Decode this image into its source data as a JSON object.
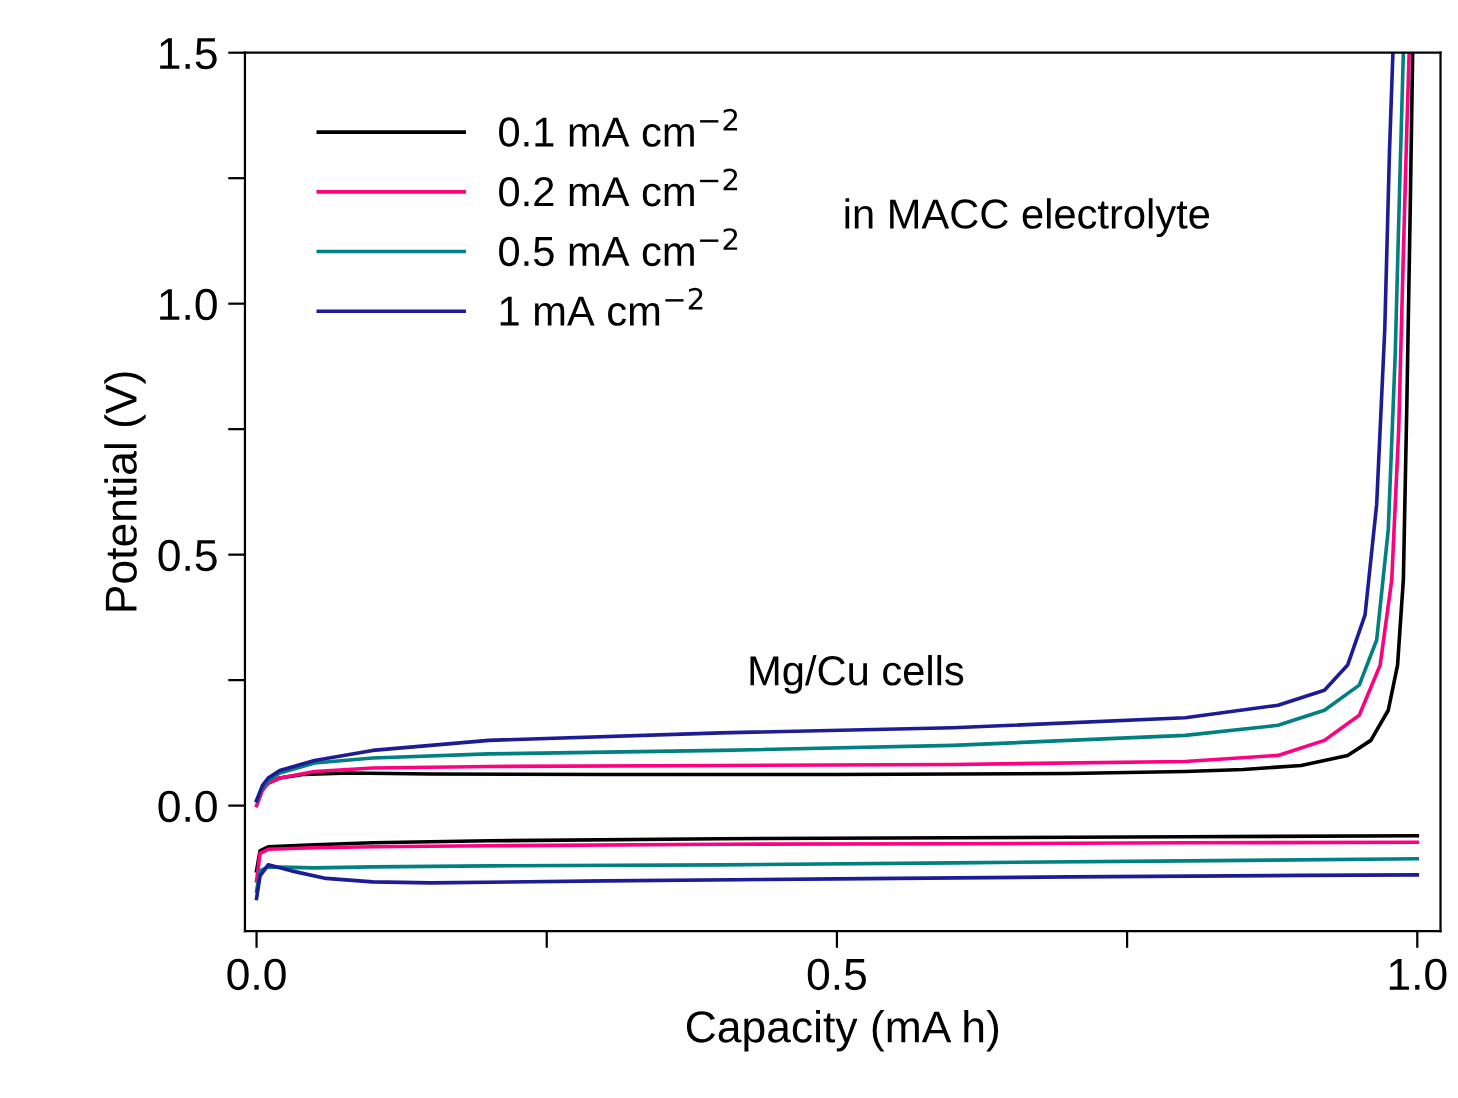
{
  "chart_data": {
    "type": "line",
    "xlabel": "Capacity (mA h)",
    "ylabel": "Potential (V)",
    "xlim": [
      -0.01,
      1.02
    ],
    "ylim": [
      -0.25,
      1.5
    ],
    "xticks": [
      {
        "value": 0,
        "label": "0.0"
      },
      {
        "value": 0.25,
        "label": null
      },
      0.5,
      {
        "value": 0.75,
        "label": null
      },
      {
        "value": 1,
        "label": "1.0"
      }
    ],
    "yticks": [
      {
        "value": 0,
        "label": "0.0"
      },
      {
        "value": 0.25,
        "label": null
      },
      0.5,
      {
        "value": 0.75,
        "label": null
      },
      {
        "value": 1,
        "label": "1.0"
      },
      {
        "value": 1.25,
        "label": null
      },
      1.5
    ],
    "grid": false,
    "legend": "top left",
    "line_style": "solid",
    "marker": "none",
    "annotations": [
      "in MACC electrolyte",
      "Mg/Cu cells"
    ],
    "series": [
      {
        "name": "0.1 mA cm$^{−2}$",
        "color": "#000000",
        "x": [
          0.01,
          0.02,
          0.04,
          0.08,
          0.15,
          0.3,
          0.5,
          0.7,
          0.8,
          0.85,
          0.9,
          0.94,
          0.96,
          0.975,
          0.983,
          0.988,
          0.991,
          0.994,
          0.996
        ],
        "values": [
          0.045,
          0.055,
          0.062,
          0.065,
          0.063,
          0.062,
          0.062,
          0.064,
          0.068,
          0.072,
          0.08,
          0.1,
          0.13,
          0.19,
          0.28,
          0.45,
          0.8,
          1.2,
          1.5
        ]
      },
      {
        "name": "0.2 mA cm$^{−2}$",
        "color": "#ff0080",
        "x": [
          0,
          0.005,
          0.01,
          0.02,
          0.05,
          0.1,
          0.2,
          0.4,
          0.6,
          0.8,
          0.88,
          0.92,
          0.95,
          0.968,
          0.978,
          0.984,
          0.988,
          0.991,
          0.993
        ],
        "values": [
          0.0,
          0.03,
          0.045,
          0.055,
          0.068,
          0.075,
          0.078,
          0.08,
          0.082,
          0.088,
          0.1,
          0.13,
          0.18,
          0.28,
          0.45,
          0.75,
          1.1,
          1.35,
          1.5
        ]
      },
      {
        "name": "0.5 mA cm$^{−2}$",
        "color": "#008080",
        "x": [
          0,
          0.005,
          0.01,
          0.02,
          0.05,
          0.1,
          0.2,
          0.4,
          0.6,
          0.8,
          0.88,
          0.92,
          0.95,
          0.965,
          0.975,
          0.981,
          0.985,
          0.988
        ],
        "values": [
          0.01,
          0.035,
          0.05,
          0.065,
          0.085,
          0.095,
          0.103,
          0.11,
          0.12,
          0.14,
          0.16,
          0.19,
          0.24,
          0.33,
          0.55,
          0.9,
          1.25,
          1.5
        ]
      },
      {
        "name": "1 mA cm$^{−2}$",
        "color": "#1c1c96",
        "x": [
          0,
          0.005,
          0.01,
          0.02,
          0.05,
          0.1,
          0.2,
          0.4,
          0.6,
          0.8,
          0.88,
          0.92,
          0.94,
          0.955,
          0.965,
          0.972,
          0.976,
          0.979
        ],
        "values": [
          0.01,
          0.04,
          0.055,
          0.07,
          0.09,
          0.11,
          0.13,
          0.145,
          0.155,
          0.175,
          0.2,
          0.23,
          0.28,
          0.38,
          0.6,
          0.95,
          1.3,
          1.5
        ]
      },
      {
        "color": "#000000",
        "x": [
          0,
          0.003,
          0.01,
          0.05,
          0.1,
          0.2,
          0.4,
          0.6,
          0.8,
          1.0
        ],
        "values": [
          -0.13,
          -0.09,
          -0.082,
          -0.078,
          -0.074,
          -0.07,
          -0.066,
          -0.064,
          -0.062,
          -0.06
        ]
      },
      {
        "color": "#ff0080",
        "x": [
          0,
          0.003,
          0.01,
          0.05,
          0.1,
          0.2,
          0.4,
          0.6,
          0.8,
          1.0
        ],
        "values": [
          -0.15,
          -0.095,
          -0.087,
          -0.084,
          -0.082,
          -0.08,
          -0.077,
          -0.076,
          -0.074,
          -0.073
        ]
      },
      {
        "color": "#008080",
        "x": [
          0,
          0.003,
          0.01,
          0.05,
          0.1,
          0.2,
          0.4,
          0.6,
          0.8,
          1.0
        ],
        "values": [
          -0.17,
          -0.13,
          -0.122,
          -0.124,
          -0.122,
          -0.12,
          -0.118,
          -0.114,
          -0.11,
          -0.106
        ]
      },
      {
        "color": "#1c1c96",
        "x": [
          0,
          0.003,
          0.01,
          0.03,
          0.06,
          0.1,
          0.15,
          0.3,
          0.5,
          0.7,
          0.9,
          1.0
        ],
        "values": [
          -0.185,
          -0.14,
          -0.118,
          -0.13,
          -0.145,
          -0.152,
          -0.154,
          -0.15,
          -0.146,
          -0.142,
          -0.139,
          -0.138
        ]
      }
    ]
  }
}
